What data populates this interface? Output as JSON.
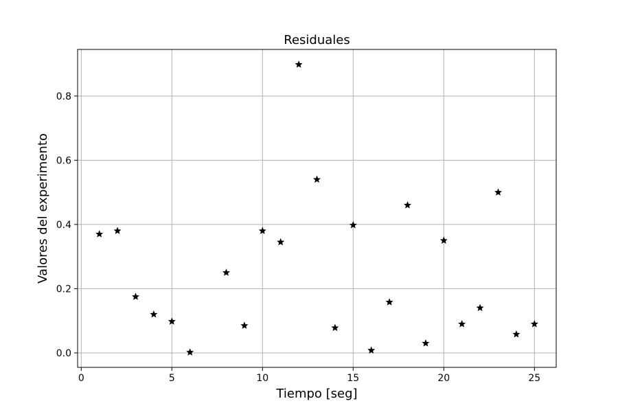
{
  "chart_data": {
    "type": "scatter",
    "title": "Residuales",
    "xlabel": "Tiempo [seg]",
    "ylabel": "Valores del experimento",
    "xlim": [
      -0.2,
      26.2
    ],
    "ylim": [
      -0.045,
      0.945
    ],
    "xticks": [
      0,
      5,
      10,
      15,
      20,
      25
    ],
    "xtick_labels": [
      "0",
      "5",
      "10",
      "15",
      "20",
      "25"
    ],
    "yticks": [
      0.0,
      0.2,
      0.4,
      0.6,
      0.8
    ],
    "ytick_labels": [
      "0.0",
      "0.2",
      "0.4",
      "0.6",
      "0.8"
    ],
    "grid": true,
    "marker": "star",
    "color": "#000000",
    "series": [
      {
        "x": [
          1,
          2,
          3,
          4,
          5,
          6,
          8,
          9,
          10,
          11,
          12,
          13,
          14,
          15,
          16,
          17,
          18,
          19,
          20,
          21,
          22,
          23,
          24,
          25
        ],
        "y": [
          0.37,
          0.38,
          0.175,
          0.12,
          0.098,
          0.002,
          0.25,
          0.085,
          0.38,
          0.345,
          0.898,
          0.54,
          0.078,
          0.398,
          0.008,
          0.158,
          0.46,
          0.03,
          0.35,
          0.09,
          0.14,
          0.5,
          0.058,
          0.09
        ]
      }
    ]
  }
}
